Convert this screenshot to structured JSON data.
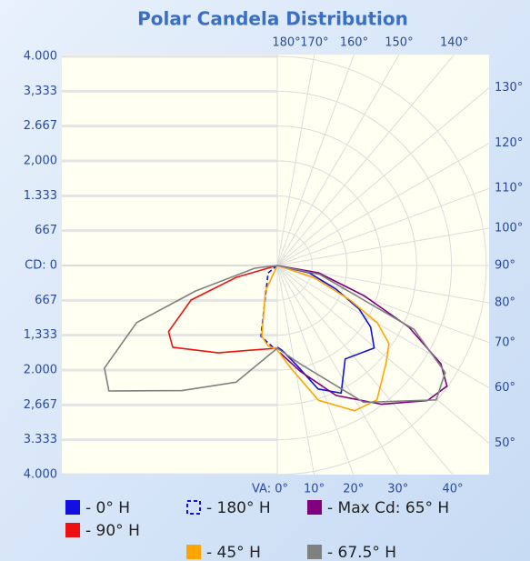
{
  "chart_data": {
    "type": "polar",
    "title": "Polar Candela Distribution",
    "ylim": [
      -4000,
      4000
    ],
    "yticks": [
      {
        "value": 4000,
        "label": "4.000"
      },
      {
        "value": 3333,
        "label": "3,333"
      },
      {
        "value": 2667,
        "label": "2.667"
      },
      {
        "value": 2000,
        "label": "2,000"
      },
      {
        "value": 1333,
        "label": "1.333"
      },
      667,
      {
        "value": 0,
        "label": "CD: 0"
      },
      {
        "value": -667,
        "label": "667"
      },
      {
        "value": -1333,
        "label": "1,333"
      },
      {
        "value": -2000,
        "label": "2.000"
      },
      {
        "value": -2667,
        "label": "2,667"
      },
      {
        "value": -3333,
        "label": "3.333"
      },
      {
        "value": -4000,
        "label": "4.000"
      }
    ],
    "xticks": [
      {
        "value": 0,
        "label": "VA: 0°"
      },
      {
        "value": 10,
        "label": "10°"
      },
      {
        "value": 20,
        "label": "20°"
      },
      {
        "value": 30,
        "label": "30°"
      },
      {
        "value": 40,
        "label": "40°"
      },
      {
        "value": 50,
        "label": "50°"
      },
      {
        "value": 60,
        "label": "60°"
      },
      {
        "value": 70,
        "label": "70°"
      },
      {
        "value": 80,
        "label": "80°"
      },
      {
        "value": 90,
        "label": "90°"
      },
      {
        "value": 100,
        "label": "100°"
      },
      {
        "value": 110,
        "label": "110°"
      },
      {
        "value": 120,
        "label": "120°"
      },
      {
        "value": 130,
        "label": "130°"
      },
      {
        "value": 140,
        "label": "140°"
      },
      {
        "value": 150,
        "label": "150°"
      },
      {
        "value": 160,
        "label": "160°"
      },
      {
        "value": 170,
        "label": "170°"
      },
      {
        "value": 180,
        "label": "180°"
      }
    ],
    "grid": true,
    "series": [
      {
        "name": "- 0° H",
        "color": "#1010e0",
        "x": [
          90,
          77,
          68,
          62,
          56.6,
          49.6,
          36,
          26.6,
          18.3,
          10.5,
          3,
          0
        ],
        "values": [
          0,
          626,
          1217,
          1774,
          2139,
          2435,
          2209,
          2730,
          2487,
          1913,
          1617,
          1565
        ]
      },
      {
        "name": "- 180° H",
        "color": "#1010e0",
        "dashed": true,
        "x": [
          -90,
          -51,
          -17,
          -13,
          -3
        ],
        "values": [
          0,
          226,
          870,
          1391,
          1565
        ]
      },
      {
        "name": "- Max Cd: 65° H",
        "color": "#800080",
        "x": [
          90,
          80,
          70.8,
          64.9,
          59,
          54.6,
          48,
          37,
          24.4,
          12.2,
          1.8
        ],
        "values": [
          0,
          800,
          1757,
          2783,
          3652,
          3983,
          3861,
          3322,
          2730,
          2070,
          1670
        ]
      },
      {
        "name": "- 90° H",
        "color": "#ee1111",
        "x": [
          -90,
          -73.9,
          -68.2,
          -58.7,
          -52,
          -34,
          -17.9,
          0
        ],
        "values": [
          0,
          817,
          1774,
          2435,
          2539,
          2017,
          1704,
          1583
        ]
      },
      {
        "name": "- 45° H",
        "color": "#ffa500",
        "x": [
          90,
          72,
          64.6,
          60.2,
          55,
          48,
          36.6,
          28,
          17,
          7.6,
          0,
          -6.5,
          -12.3,
          -24.9,
          -90
        ],
        "values": [
          0,
          730,
          1548,
          2209,
          2609,
          2800,
          3200,
          3148,
          2696,
          1983,
          1617,
          1548,
          1391,
          539,
          0
        ]
      },
      {
        "name": "- 67.5° H",
        "color": "#808080",
        "x": [
          90,
          78,
          65,
          57.5,
          49.8,
          32.3,
          13,
          0,
          -19.4,
          -37.3,
          -53.3,
          -59.3,
          -67.9,
          -72.7,
          -83,
          -90
        ],
        "values": [
          0,
          835,
          2887,
          3809,
          3983,
          3096,
          1930,
          1583,
          2365,
          3009,
          4017,
          3844,
          2904,
          1635,
          435,
          0
        ]
      }
    ]
  }
}
